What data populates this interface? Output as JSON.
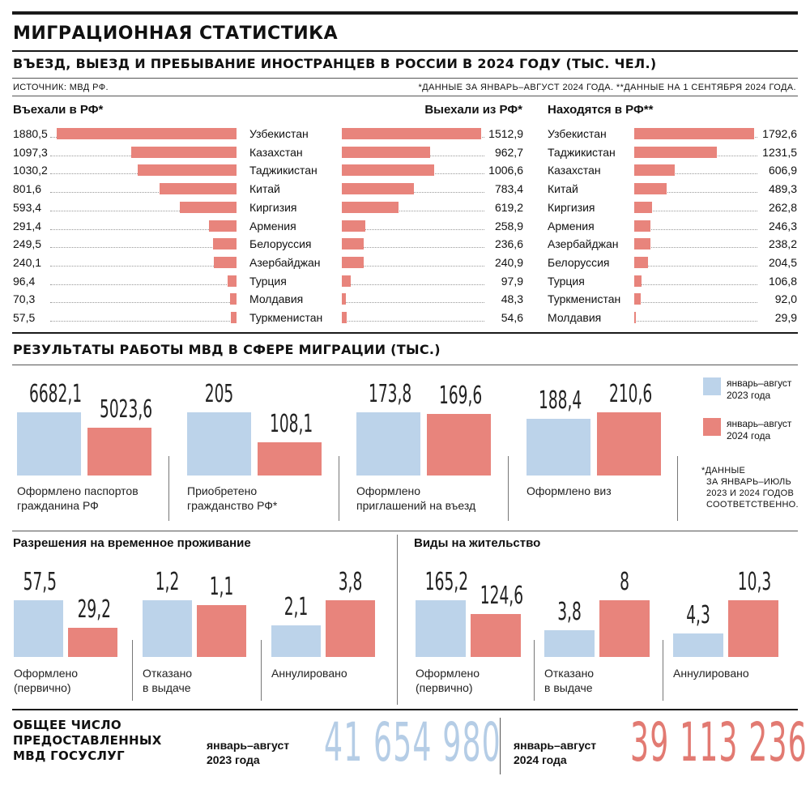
{
  "header": {
    "title": "МИГРАЦИОННАЯ СТАТИСТИКА",
    "subtitle": "ВЪЕЗД, ВЫЕЗД И ПРЕБЫВАНИЕ ИНОСТРАНЦЕВ В РОССИИ В 2024 ГОДУ (ТЫС. ЧЕЛ.)",
    "source": "ИСТОЧНИК: МВД РФ.",
    "footnote": "*ДАННЫЕ ЗА ЯНВАРЬ–АВГУСТ 2024 ГОДА.  **ДАННЫЕ НА 1 СЕНТЯБРЯ 2024 ГОДА."
  },
  "colors": {
    "blue": "#bcd3ea",
    "red": "#e8847c",
    "blueText": "#b5cde6",
    "redText": "#e27a72"
  },
  "chart_data": [
    {
      "type": "bar",
      "title": "Въехали в РФ*",
      "orientation": "horizontal",
      "categories": [
        "Узбекистан",
        "Казахстан",
        "Таджикистан",
        "Китай",
        "Киргизия",
        "Армения",
        "Белоруссия",
        "Азербайджан",
        "Турция",
        "Молдавия",
        "Туркменистан"
      ],
      "values": [
        1880.5,
        1097.3,
        1030.2,
        801.6,
        593.4,
        291.4,
        249.5,
        240.1,
        96.4,
        70.3,
        57.5
      ],
      "labels": [
        "1880,5",
        "1097,3",
        "1030,2",
        "801,6",
        "593,4",
        "291,4",
        "249,5",
        "240,1",
        "96,4",
        "70,3",
        "57,5"
      ]
    },
    {
      "type": "bar",
      "title": "Выехали из РФ*",
      "orientation": "horizontal",
      "categories": [
        "Узбекистан",
        "Казахстан",
        "Таджикистан",
        "Китай",
        "Киргизия",
        "Армения",
        "Белоруссия",
        "Азербайджан",
        "Турция",
        "Молдавия",
        "Туркменистан"
      ],
      "values": [
        1512.9,
        962.7,
        1006.6,
        783.4,
        619.2,
        258.9,
        236.6,
        240.9,
        97.9,
        48.3,
        54.6
      ],
      "labels": [
        "1512,9",
        "962,7",
        "1006,6",
        "783,4",
        "619,2",
        "258,9",
        "236,6",
        "240,9",
        "97,9",
        "48,3",
        "54,6"
      ]
    },
    {
      "type": "bar",
      "title": "Находятся в РФ**",
      "orientation": "horizontal",
      "categories": [
        "Узбекистан",
        "Таджикистан",
        "Казахстан",
        "Китай",
        "Киргизия",
        "Армения",
        "Азербайджан",
        "Белоруссия",
        "Турция",
        "Туркменистан",
        "Молдавия"
      ],
      "values": [
        1792.6,
        1231.5,
        606.9,
        489.3,
        262.8,
        246.3,
        238.2,
        204.5,
        106.8,
        92.0,
        29.9
      ],
      "labels": [
        "1792,6",
        "1231,5",
        "606,9",
        "489,3",
        "262,8",
        "246,3",
        "238,2",
        "204,5",
        "106,8",
        "92,0",
        "29,9"
      ]
    },
    {
      "type": "bar",
      "title": "РЕЗУЛЬТАТЫ РАБОТЫ МВД В СФЕРЕ МИГРАЦИИ (ТЫС.)",
      "categories": [
        "Оформлено паспортов гражданина РФ",
        "Приобретено гражданство РФ*",
        "Оформлено приглашений на въезд",
        "Оформлено виз"
      ],
      "series": [
        {
          "name": "январь–август 2023 года",
          "values": [
            6682.1,
            205,
            173.8,
            188.4
          ],
          "labels": [
            "6682,1",
            "205",
            "173,8",
            "188,4"
          ]
        },
        {
          "name": "январь–август 2024 года",
          "values": [
            5023.6,
            108.1,
            169.6,
            210.6
          ],
          "labels": [
            "5023,6",
            "108,1",
            "169,6",
            "210,6"
          ]
        }
      ]
    },
    {
      "type": "bar",
      "title": "Разрешения на временное проживание",
      "categories": [
        "Оформлено (первично)",
        "Отказано в выдаче",
        "Аннулировано"
      ],
      "series": [
        {
          "name": "январь–август 2023 года",
          "values": [
            57.5,
            1.2,
            2.1
          ],
          "labels": [
            "57,5",
            "1,2",
            "2,1"
          ]
        },
        {
          "name": "январь–август 2024 года",
          "values": [
            29.2,
            1.1,
            3.8
          ],
          "labels": [
            "29,2",
            "1,1",
            "3,8"
          ]
        }
      ]
    },
    {
      "type": "bar",
      "title": "Виды на жительство",
      "categories": [
        "Оформлено (первично)",
        "Отказано в выдаче",
        "Аннулировано"
      ],
      "series": [
        {
          "name": "январь–август 2023 года",
          "values": [
            165.2,
            3.8,
            4.3
          ],
          "labels": [
            "165,2",
            "3,8",
            "4,3"
          ]
        },
        {
          "name": "январь–август 2024 года",
          "values": [
            124.6,
            8,
            10.3
          ],
          "labels": [
            "124,6",
            "8",
            "10,3"
          ]
        }
      ]
    }
  ],
  "legend": {
    "line1a": "январь–август",
    "line1b": "2023 года",
    "line2a": "январь–август",
    "line2b": "2024 года",
    "note_lines": [
      "*ДАННЫЕ",
      "ЗА ЯНВАРЬ–ИЮЛЬ",
      "2023 И 2024 ГОДОВ",
      "СООТВЕТСТВЕННО."
    ]
  },
  "captions": {
    "mvd": [
      [
        "Оформлено паспортов",
        "гражданина РФ"
      ],
      [
        "Приобретено",
        "гражданство РФ*"
      ],
      [
        "Оформлено",
        "приглашений на въезд"
      ],
      [
        "Оформлено виз",
        ""
      ]
    ],
    "rvp": [
      [
        "Оформлено",
        "(первично)"
      ],
      [
        "Отказано",
        "в выдаче"
      ],
      [
        "Аннулировано",
        ""
      ]
    ],
    "vnzh": [
      [
        "Оформлено",
        "(первично)"
      ],
      [
        "Отказано",
        "в выдаче"
      ],
      [
        "Аннулировано",
        ""
      ]
    ]
  },
  "totals": {
    "label_lines": [
      "ОБЩЕЕ ЧИСЛО",
      "ПРЕДОСТАВЛЕННЫХ",
      "МВД ГОСУСЛУГ"
    ],
    "p2023a": "январь–август",
    "p2023b": "2023 года",
    "v2023": "41 654 980",
    "p2024a": "январь–август",
    "p2024b": "2024 года",
    "v2024": "39 113 236"
  }
}
